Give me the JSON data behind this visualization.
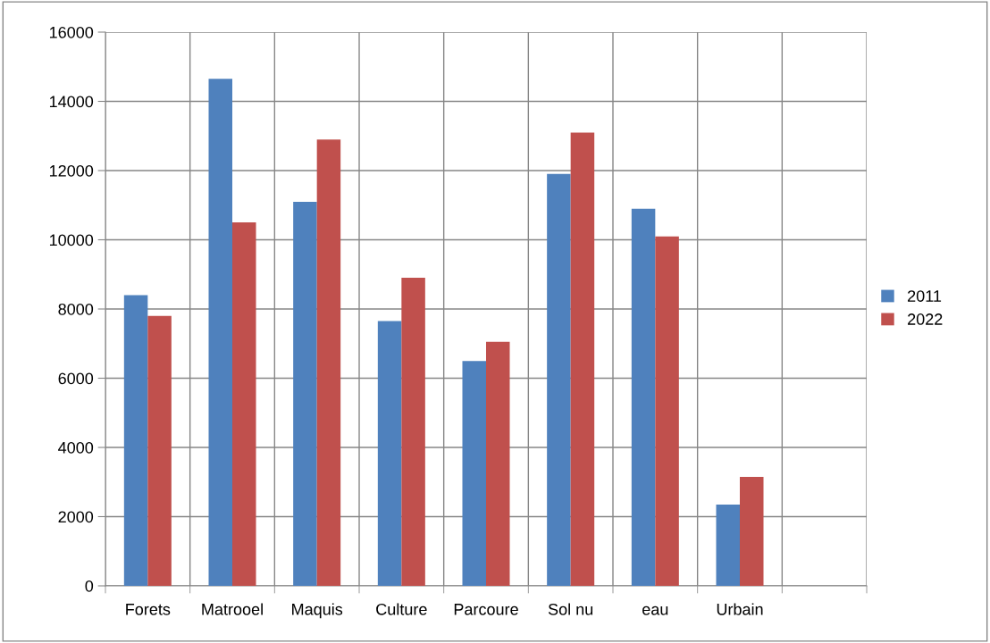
{
  "chart_data": {
    "type": "bar",
    "categories": [
      "Forets",
      "Matrooel",
      "Maquis",
      "Culture",
      "Parcoure",
      "Sol nu",
      "eau",
      "Urbain",
      null
    ],
    "series": [
      {
        "name": "2011",
        "color": "#4f81bd",
        "values": [
          8400,
          14650,
          11100,
          7650,
          6500,
          11900,
          10900,
          2350,
          null
        ]
      },
      {
        "name": "2022",
        "color": "#c0504d",
        "values": [
          7800,
          10500,
          12900,
          8900,
          7050,
          13100,
          10100,
          3150,
          null
        ]
      }
    ],
    "ylim": [
      0,
      16000
    ],
    "yticks": [
      0,
      2000,
      4000,
      6000,
      8000,
      10000,
      12000,
      14000,
      16000
    ],
    "grid": true,
    "legend": "right"
  }
}
